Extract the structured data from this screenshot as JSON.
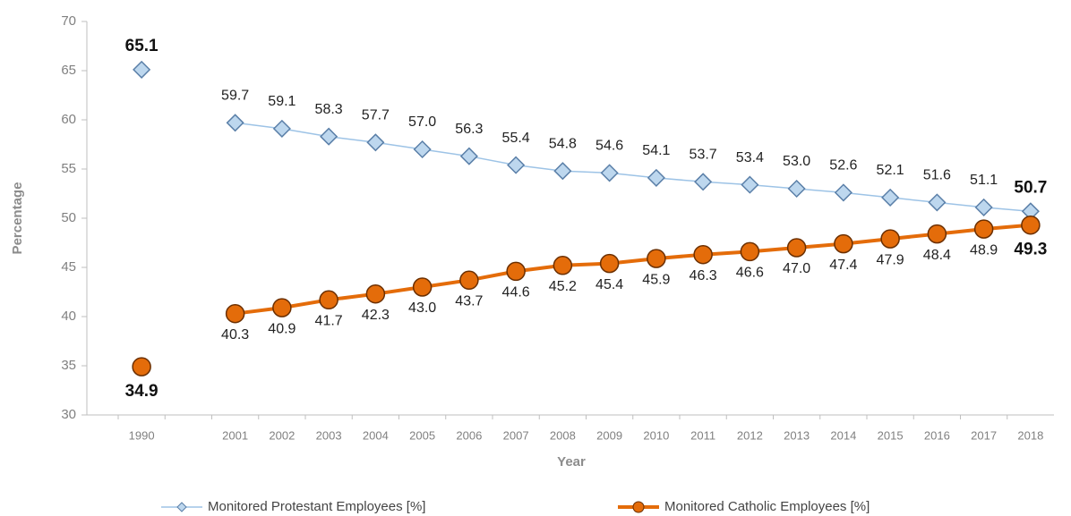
{
  "chart_data": {
    "type": "line",
    "x_label": "Year",
    "y_label": "Percentage",
    "categories": [
      "1990",
      null,
      "2001",
      "2002",
      "2003",
      "2004",
      "2005",
      "2006",
      "2007",
      "2008",
      "2009",
      "2010",
      "2011",
      "2012",
      "2013",
      "2014",
      "2015",
      "2016",
      "2017",
      "2018"
    ],
    "series": [
      {
        "name": "Monitored Protestant Employees [%]",
        "color": "#9dc3e6",
        "marker": "diamond",
        "values": [
          65.1,
          null,
          59.7,
          59.1,
          58.3,
          57.7,
          57.0,
          56.3,
          55.4,
          54.8,
          54.6,
          54.1,
          53.7,
          53.4,
          53.0,
          52.6,
          52.1,
          51.6,
          51.1,
          50.7
        ],
        "value_labels": [
          "65.1",
          null,
          "59.7",
          "59.1",
          "58.3",
          "57.7",
          "57.0",
          "56.3",
          "55.4",
          "54.8",
          "54.6",
          "54.1",
          "53.7",
          "53.4",
          "53.0",
          "52.6",
          "52.1",
          "51.6",
          "51.1",
          "50.7"
        ]
      },
      {
        "name": "Monitored Catholic Employees [%]",
        "color": "#e46c0a",
        "marker": "circle",
        "values": [
          34.9,
          null,
          40.3,
          40.9,
          41.7,
          42.3,
          43.0,
          43.7,
          44.6,
          45.2,
          45.4,
          45.9,
          46.3,
          46.6,
          47.0,
          47.4,
          47.9,
          48.4,
          48.9,
          49.3
        ],
        "value_labels": [
          "34.9",
          null,
          "40.3",
          "40.9",
          "41.7",
          "42.3",
          "43.0",
          "43.7",
          "44.6",
          "45.2",
          "45.4",
          "45.9",
          "46.3",
          "46.6",
          "47.0",
          "47.4",
          "47.9",
          "48.4",
          "48.9",
          "49.3"
        ]
      }
    ],
    "ylim": [
      30,
      70
    ],
    "yticks": [
      30,
      35,
      40,
      45,
      50,
      55,
      60,
      65,
      70
    ],
    "grid": false,
    "legend": "bottom"
  }
}
